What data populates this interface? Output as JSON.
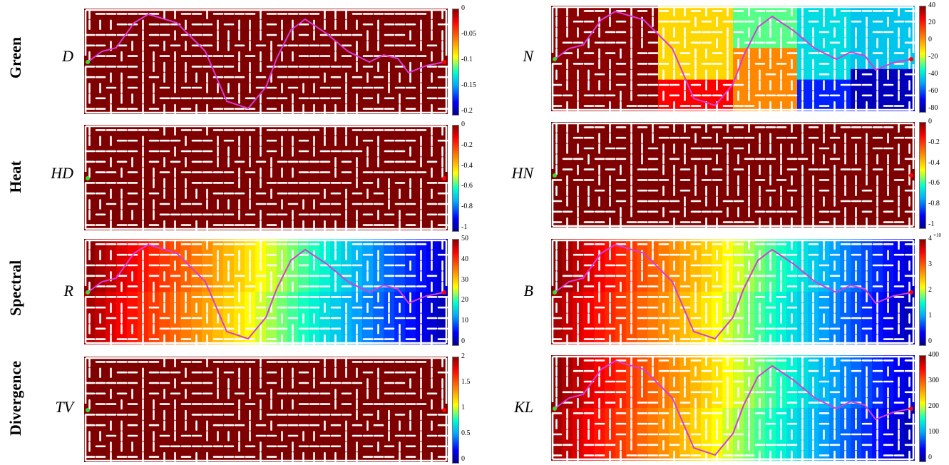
{
  "row_labels": [
    "Green",
    "Heat",
    "Spectral",
    "Divergence"
  ],
  "panels": [
    {
      "label": "D",
      "ticks": [
        "0",
        "-0.05",
        "-0.1",
        "-0.15",
        "-0.2"
      ],
      "mode": "solid",
      "path": true
    },
    {
      "label": "N",
      "ticks": [
        "40",
        "20",
        "0",
        "-20",
        "-40",
        "-60",
        "-80"
      ],
      "mode": "zones",
      "path": true
    },
    {
      "label": "HD",
      "ticks": [
        "0",
        "-0.2",
        "-0.4",
        "-0.6",
        "-0.8",
        "-1"
      ],
      "mode": "solid",
      "path": false
    },
    {
      "label": "HN",
      "ticks": [
        "0",
        "-0.2",
        "-0.4",
        "-0.6",
        "-0.8",
        "-1"
      ],
      "mode": "solid",
      "path": false
    },
    {
      "label": "R",
      "ticks": [
        "50",
        "40",
        "30",
        "20",
        "10",
        "0"
      ],
      "mode": "gradient",
      "path": true
    },
    {
      "label": "B",
      "ticks": [
        "4",
        "3",
        "2",
        "1",
        "0"
      ],
      "exponent": "×10",
      "mode": "gradient",
      "path": true
    },
    {
      "label": "TV",
      "ticks": [
        "2",
        "1.5",
        "1",
        "0.5",
        "0"
      ],
      "mode": "solid",
      "path": false
    },
    {
      "label": "KL",
      "ticks": [
        "400",
        "300",
        "200",
        "100",
        "0"
      ],
      "mode": "gradient",
      "path": true
    }
  ],
  "colors": {
    "maze_fill": "#7f0000",
    "wall": "#ffffff",
    "path": "#d63cd6",
    "start": "#33dd33",
    "goal": "#ff0000"
  }
}
